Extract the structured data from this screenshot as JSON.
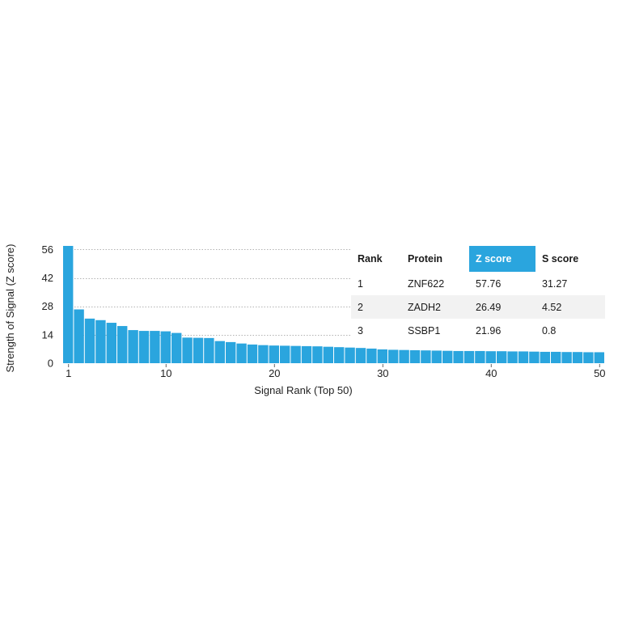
{
  "chart_data": {
    "type": "bar",
    "xlabel": "Signal Rank (Top 50)",
    "ylabel": "Strength of Signal (Z score)",
    "ylim": [
      0,
      57.76
    ],
    "yticks": [
      0,
      14,
      28,
      42,
      56
    ],
    "xticks": [
      1,
      10,
      20,
      30,
      40,
      50
    ],
    "grid": "horizontal dotted",
    "bar_color": "#2aa5de",
    "x": [
      1,
      2,
      3,
      4,
      5,
      6,
      7,
      8,
      9,
      10,
      11,
      12,
      13,
      14,
      15,
      16,
      17,
      18,
      19,
      20,
      21,
      22,
      23,
      24,
      25,
      26,
      27,
      28,
      29,
      30,
      31,
      32,
      33,
      34,
      35,
      36,
      37,
      38,
      39,
      40,
      41,
      42,
      43,
      44,
      45,
      46,
      47,
      48,
      49,
      50
    ],
    "values": [
      57.76,
      26.49,
      21.96,
      21.2,
      19.9,
      18.3,
      16.3,
      15.9,
      15.9,
      15.7,
      14.9,
      12.6,
      12.5,
      12.4,
      10.9,
      10.4,
      9.7,
      9.2,
      8.9,
      8.7,
      8.6,
      8.5,
      8.4,
      8.3,
      8.1,
      7.9,
      7.7,
      7.5,
      7.2,
      6.8,
      6.6,
      6.5,
      6.4,
      6.3,
      6.2,
      6.1,
      6.0,
      6.0,
      6.0,
      5.9,
      5.9,
      5.8,
      5.8,
      5.7,
      5.6,
      5.6,
      5.5,
      5.5,
      5.4,
      5.4
    ]
  },
  "table": {
    "headers": [
      "Rank",
      "Protein",
      "Z score",
      "S score"
    ],
    "rows": [
      [
        "1",
        "ZNF622",
        "57.76",
        "31.27"
      ],
      [
        "2",
        "ZADH2",
        "26.49",
        "4.52"
      ],
      [
        "3",
        "SSBP1",
        "21.96",
        "0.8"
      ]
    ],
    "highlight_color": "#2aa5de"
  }
}
